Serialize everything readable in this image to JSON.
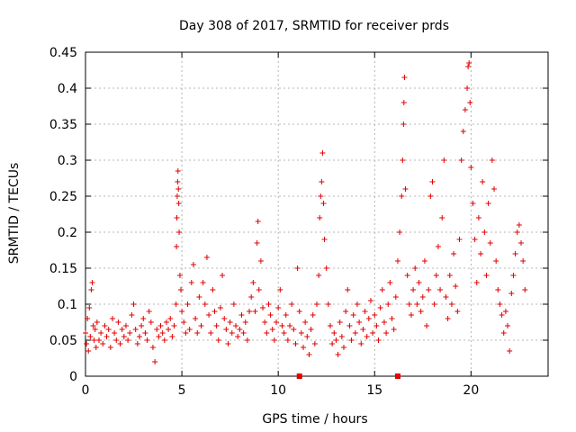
{
  "chart_data": {
    "type": "scatter",
    "title": "Day 308 of 2017, SRMTID for receiver prds",
    "xlabel": "GPS time / hours",
    "ylabel": "SRMTID / TECUs",
    "xlim": [
      0,
      24
    ],
    "ylim": [
      0,
      0.45
    ],
    "x_ticks": [
      0,
      5,
      10,
      15,
      20
    ],
    "x_tick_labels": [
      "0",
      "5",
      "10",
      "15",
      "20"
    ],
    "y_ticks": [
      0,
      0.05,
      0.1,
      0.15,
      0.2,
      0.25,
      0.3,
      0.35,
      0.4,
      0.45
    ],
    "y_tick_labels": [
      "0",
      "0.05",
      "0.1",
      "0.15",
      "0.2",
      "0.25",
      "0.3",
      "0.35",
      "0.4",
      "0.45"
    ],
    "grid": true,
    "marker": "+",
    "color": "#e00000",
    "series": [
      {
        "name": "SRMTID",
        "points": [
          [
            0.0,
            0.06
          ],
          [
            0.05,
            0.045
          ],
          [
            0.1,
            0.08
          ],
          [
            0.15,
            0.035
          ],
          [
            0.2,
            0.095
          ],
          [
            0.25,
            0.055
          ],
          [
            0.3,
            0.12
          ],
          [
            0.35,
            0.13
          ],
          [
            0.4,
            0.07
          ],
          [
            0.45,
            0.05
          ],
          [
            0.5,
            0.065
          ],
          [
            0.55,
            0.04
          ],
          [
            0.6,
            0.075
          ],
          [
            0.7,
            0.05
          ],
          [
            0.8,
            0.06
          ],
          [
            0.9,
            0.045
          ],
          [
            1.0,
            0.07
          ],
          [
            1.1,
            0.055
          ],
          [
            1.2,
            0.065
          ],
          [
            1.3,
            0.04
          ],
          [
            1.4,
            0.08
          ],
          [
            1.5,
            0.06
          ],
          [
            1.6,
            0.05
          ],
          [
            1.7,
            0.075
          ],
          [
            1.8,
            0.045
          ],
          [
            1.9,
            0.065
          ],
          [
            2.0,
            0.055
          ],
          [
            2.1,
            0.07
          ],
          [
            2.2,
            0.05
          ],
          [
            2.3,
            0.06
          ],
          [
            2.4,
            0.085
          ],
          [
            2.5,
            0.1
          ],
          [
            2.6,
            0.065
          ],
          [
            2.7,
            0.045
          ],
          [
            2.8,
            0.055
          ],
          [
            2.9,
            0.07
          ],
          [
            3.0,
            0.08
          ],
          [
            3.1,
            0.06
          ],
          [
            3.2,
            0.05
          ],
          [
            3.3,
            0.09
          ],
          [
            3.4,
            0.075
          ],
          [
            3.5,
            0.04
          ],
          [
            3.6,
            0.02
          ],
          [
            3.7,
            0.065
          ],
          [
            3.8,
            0.055
          ],
          [
            3.9,
            0.07
          ],
          [
            4.0,
            0.06
          ],
          [
            4.1,
            0.05
          ],
          [
            4.2,
            0.075
          ],
          [
            4.3,
            0.065
          ],
          [
            4.4,
            0.08
          ],
          [
            4.5,
            0.055
          ],
          [
            4.6,
            0.07
          ],
          [
            4.7,
            0.1
          ],
          [
            4.72,
            0.18
          ],
          [
            4.74,
            0.22
          ],
          [
            4.76,
            0.25
          ],
          [
            4.78,
            0.27
          ],
          [
            4.8,
            0.285
          ],
          [
            4.82,
            0.26
          ],
          [
            4.84,
            0.24
          ],
          [
            4.86,
            0.2
          ],
          [
            4.9,
            0.14
          ],
          [
            4.95,
            0.12
          ],
          [
            5.0,
            0.09
          ],
          [
            5.1,
            0.075
          ],
          [
            5.2,
            0.06
          ],
          [
            5.3,
            0.1
          ],
          [
            5.4,
            0.065
          ],
          [
            5.5,
            0.13
          ],
          [
            5.6,
            0.155
          ],
          [
            5.7,
            0.08
          ],
          [
            5.8,
            0.06
          ],
          [
            5.9,
            0.11
          ],
          [
            6.0,
            0.07
          ],
          [
            6.1,
            0.13
          ],
          [
            6.2,
            0.1
          ],
          [
            6.3,
            0.165
          ],
          [
            6.4,
            0.085
          ],
          [
            6.5,
            0.06
          ],
          [
            6.6,
            0.12
          ],
          [
            6.7,
            0.09
          ],
          [
            6.8,
            0.07
          ],
          [
            6.9,
            0.05
          ],
          [
            7.0,
            0.095
          ],
          [
            7.1,
            0.14
          ],
          [
            7.2,
            0.08
          ],
          [
            7.3,
            0.065
          ],
          [
            7.4,
            0.045
          ],
          [
            7.5,
            0.075
          ],
          [
            7.6,
            0.06
          ],
          [
            7.7,
            0.1
          ],
          [
            7.8,
            0.07
          ],
          [
            7.9,
            0.055
          ],
          [
            8.0,
            0.065
          ],
          [
            8.1,
            0.085
          ],
          [
            8.2,
            0.06
          ],
          [
            8.3,
            0.075
          ],
          [
            8.4,
            0.05
          ],
          [
            8.5,
            0.09
          ],
          [
            8.6,
            0.11
          ],
          [
            8.7,
            0.13
          ],
          [
            8.8,
            0.09
          ],
          [
            8.9,
            0.185
          ],
          [
            8.95,
            0.215
          ],
          [
            9.0,
            0.12
          ],
          [
            9.1,
            0.16
          ],
          [
            9.2,
            0.095
          ],
          [
            9.3,
            0.075
          ],
          [
            9.4,
            0.06
          ],
          [
            9.5,
            0.1
          ],
          [
            9.6,
            0.085
          ],
          [
            9.7,
            0.065
          ],
          [
            9.8,
            0.05
          ],
          [
            9.9,
            0.075
          ],
          [
            10.0,
            0.095
          ],
          [
            10.1,
            0.12
          ],
          [
            10.2,
            0.07
          ],
          [
            10.3,
            0.06
          ],
          [
            10.4,
            0.085
          ],
          [
            10.5,
            0.05
          ],
          [
            10.6,
            0.07
          ],
          [
            10.7,
            0.1
          ],
          [
            10.8,
            0.065
          ],
          [
            10.9,
            0.045
          ],
          [
            11.0,
            0.15
          ],
          [
            11.1,
            0.09
          ],
          [
            11.2,
            0.06
          ],
          [
            11.3,
            0.04
          ],
          [
            11.4,
            0.075
          ],
          [
            11.5,
            0.055
          ],
          [
            11.6,
            0.03
          ],
          [
            11.7,
            0.065
          ],
          [
            11.8,
            0.085
          ],
          [
            11.9,
            0.045
          ],
          [
            12.0,
            0.1
          ],
          [
            12.1,
            0.14
          ],
          [
            12.15,
            0.22
          ],
          [
            12.2,
            0.25
          ],
          [
            12.25,
            0.27
          ],
          [
            12.3,
            0.31
          ],
          [
            12.35,
            0.24
          ],
          [
            12.4,
            0.19
          ],
          [
            12.5,
            0.15
          ],
          [
            12.6,
            0.1
          ],
          [
            12.7,
            0.07
          ],
          [
            12.8,
            0.045
          ],
          [
            12.9,
            0.06
          ],
          [
            13.0,
            0.05
          ],
          [
            13.1,
            0.03
          ],
          [
            13.2,
            0.075
          ],
          [
            13.3,
            0.055
          ],
          [
            13.4,
            0.04
          ],
          [
            13.5,
            0.09
          ],
          [
            13.6,
            0.12
          ],
          [
            13.7,
            0.07
          ],
          [
            13.8,
            0.05
          ],
          [
            13.9,
            0.085
          ],
          [
            14.0,
            0.06
          ],
          [
            14.1,
            0.1
          ],
          [
            14.2,
            0.075
          ],
          [
            14.3,
            0.045
          ],
          [
            14.4,
            0.065
          ],
          [
            14.5,
            0.09
          ],
          [
            14.6,
            0.055
          ],
          [
            14.7,
            0.08
          ],
          [
            14.8,
            0.105
          ],
          [
            14.9,
            0.06
          ],
          [
            15.0,
            0.085
          ],
          [
            15.1,
            0.07
          ],
          [
            15.2,
            0.05
          ],
          [
            15.3,
            0.095
          ],
          [
            15.4,
            0.12
          ],
          [
            15.5,
            0.075
          ],
          [
            15.6,
            0.06
          ],
          [
            15.7,
            0.1
          ],
          [
            15.8,
            0.13
          ],
          [
            15.9,
            0.08
          ],
          [
            16.0,
            0.065
          ],
          [
            16.1,
            0.11
          ],
          [
            16.2,
            0.16
          ],
          [
            16.3,
            0.2
          ],
          [
            16.4,
            0.25
          ],
          [
            16.45,
            0.3
          ],
          [
            16.5,
            0.35
          ],
          [
            16.52,
            0.38
          ],
          [
            16.55,
            0.415
          ],
          [
            16.6,
            0.26
          ],
          [
            16.7,
            0.14
          ],
          [
            16.8,
            0.1
          ],
          [
            16.9,
            0.085
          ],
          [
            17.0,
            0.12
          ],
          [
            17.1,
            0.15
          ],
          [
            17.2,
            0.1
          ],
          [
            17.3,
            0.13
          ],
          [
            17.4,
            0.09
          ],
          [
            17.5,
            0.11
          ],
          [
            17.6,
            0.16
          ],
          [
            17.7,
            0.07
          ],
          [
            17.8,
            0.12
          ],
          [
            17.9,
            0.25
          ],
          [
            18.0,
            0.27
          ],
          [
            18.1,
            0.1
          ],
          [
            18.2,
            0.14
          ],
          [
            18.3,
            0.18
          ],
          [
            18.4,
            0.12
          ],
          [
            18.5,
            0.22
          ],
          [
            18.6,
            0.3
          ],
          [
            18.7,
            0.11
          ],
          [
            18.8,
            0.08
          ],
          [
            18.9,
            0.14
          ],
          [
            19.0,
            0.1
          ],
          [
            19.1,
            0.17
          ],
          [
            19.2,
            0.125
          ],
          [
            19.3,
            0.09
          ],
          [
            19.4,
            0.19
          ],
          [
            19.5,
            0.3
          ],
          [
            19.6,
            0.34
          ],
          [
            19.7,
            0.37
          ],
          [
            19.8,
            0.4
          ],
          [
            19.85,
            0.43
          ],
          [
            19.9,
            0.435
          ],
          [
            19.95,
            0.38
          ],
          [
            20.0,
            0.29
          ],
          [
            20.1,
            0.24
          ],
          [
            20.2,
            0.19
          ],
          [
            20.3,
            0.13
          ],
          [
            20.4,
            0.22
          ],
          [
            20.5,
            0.17
          ],
          [
            20.6,
            0.27
          ],
          [
            20.7,
            0.2
          ],
          [
            20.8,
            0.14
          ],
          [
            20.9,
            0.24
          ],
          [
            21.0,
            0.185
          ],
          [
            21.1,
            0.3
          ],
          [
            21.2,
            0.26
          ],
          [
            21.3,
            0.16
          ],
          [
            21.4,
            0.12
          ],
          [
            21.5,
            0.1
          ],
          [
            21.6,
            0.085
          ],
          [
            21.7,
            0.06
          ],
          [
            21.8,
            0.09
          ],
          [
            21.9,
            0.07
          ],
          [
            22.0,
            0.035
          ],
          [
            22.1,
            0.115
          ],
          [
            22.2,
            0.14
          ],
          [
            22.3,
            0.17
          ],
          [
            22.4,
            0.2
          ],
          [
            22.5,
            0.21
          ],
          [
            22.6,
            0.185
          ],
          [
            22.7,
            0.16
          ],
          [
            22.8,
            0.12
          ]
        ]
      }
    ],
    "annotations": [
      {
        "type": "marker",
        "x": 11.1,
        "y": 0
      },
      {
        "type": "marker",
        "x": 16.2,
        "y": 0
      }
    ]
  }
}
